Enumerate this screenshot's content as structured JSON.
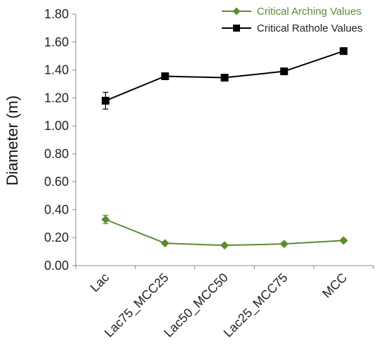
{
  "chart_data": {
    "type": "line",
    "title": "",
    "xlabel": "",
    "ylabel": "Diameter (m)",
    "ylim": [
      0,
      1.8
    ],
    "yticks": [
      "0.00",
      "0.20",
      "0.40",
      "0.60",
      "0.80",
      "1.00",
      "1.20",
      "1.40",
      "1.60",
      "1.80"
    ],
    "categories": [
      "Lac",
      "Lac75_MCC25",
      "Lac50_MCC50",
      "Lac25_MCC75",
      "MCC"
    ],
    "grid": false,
    "legend_position": "top-right",
    "series": [
      {
        "name": "Critical Arching Values",
        "color": "#5b8c2e",
        "marker": "diamond",
        "values": [
          0.33,
          0.16,
          0.145,
          0.155,
          0.18
        ],
        "errors": [
          0.03,
          0.008,
          0.008,
          0.008,
          0.012
        ]
      },
      {
        "name": "Critical Rathole Values",
        "color": "#000000",
        "marker": "square",
        "values": [
          1.18,
          1.355,
          1.345,
          1.39,
          1.535
        ],
        "errors": [
          0.06,
          0.02,
          0.015,
          0.015,
          0.015
        ]
      }
    ]
  }
}
